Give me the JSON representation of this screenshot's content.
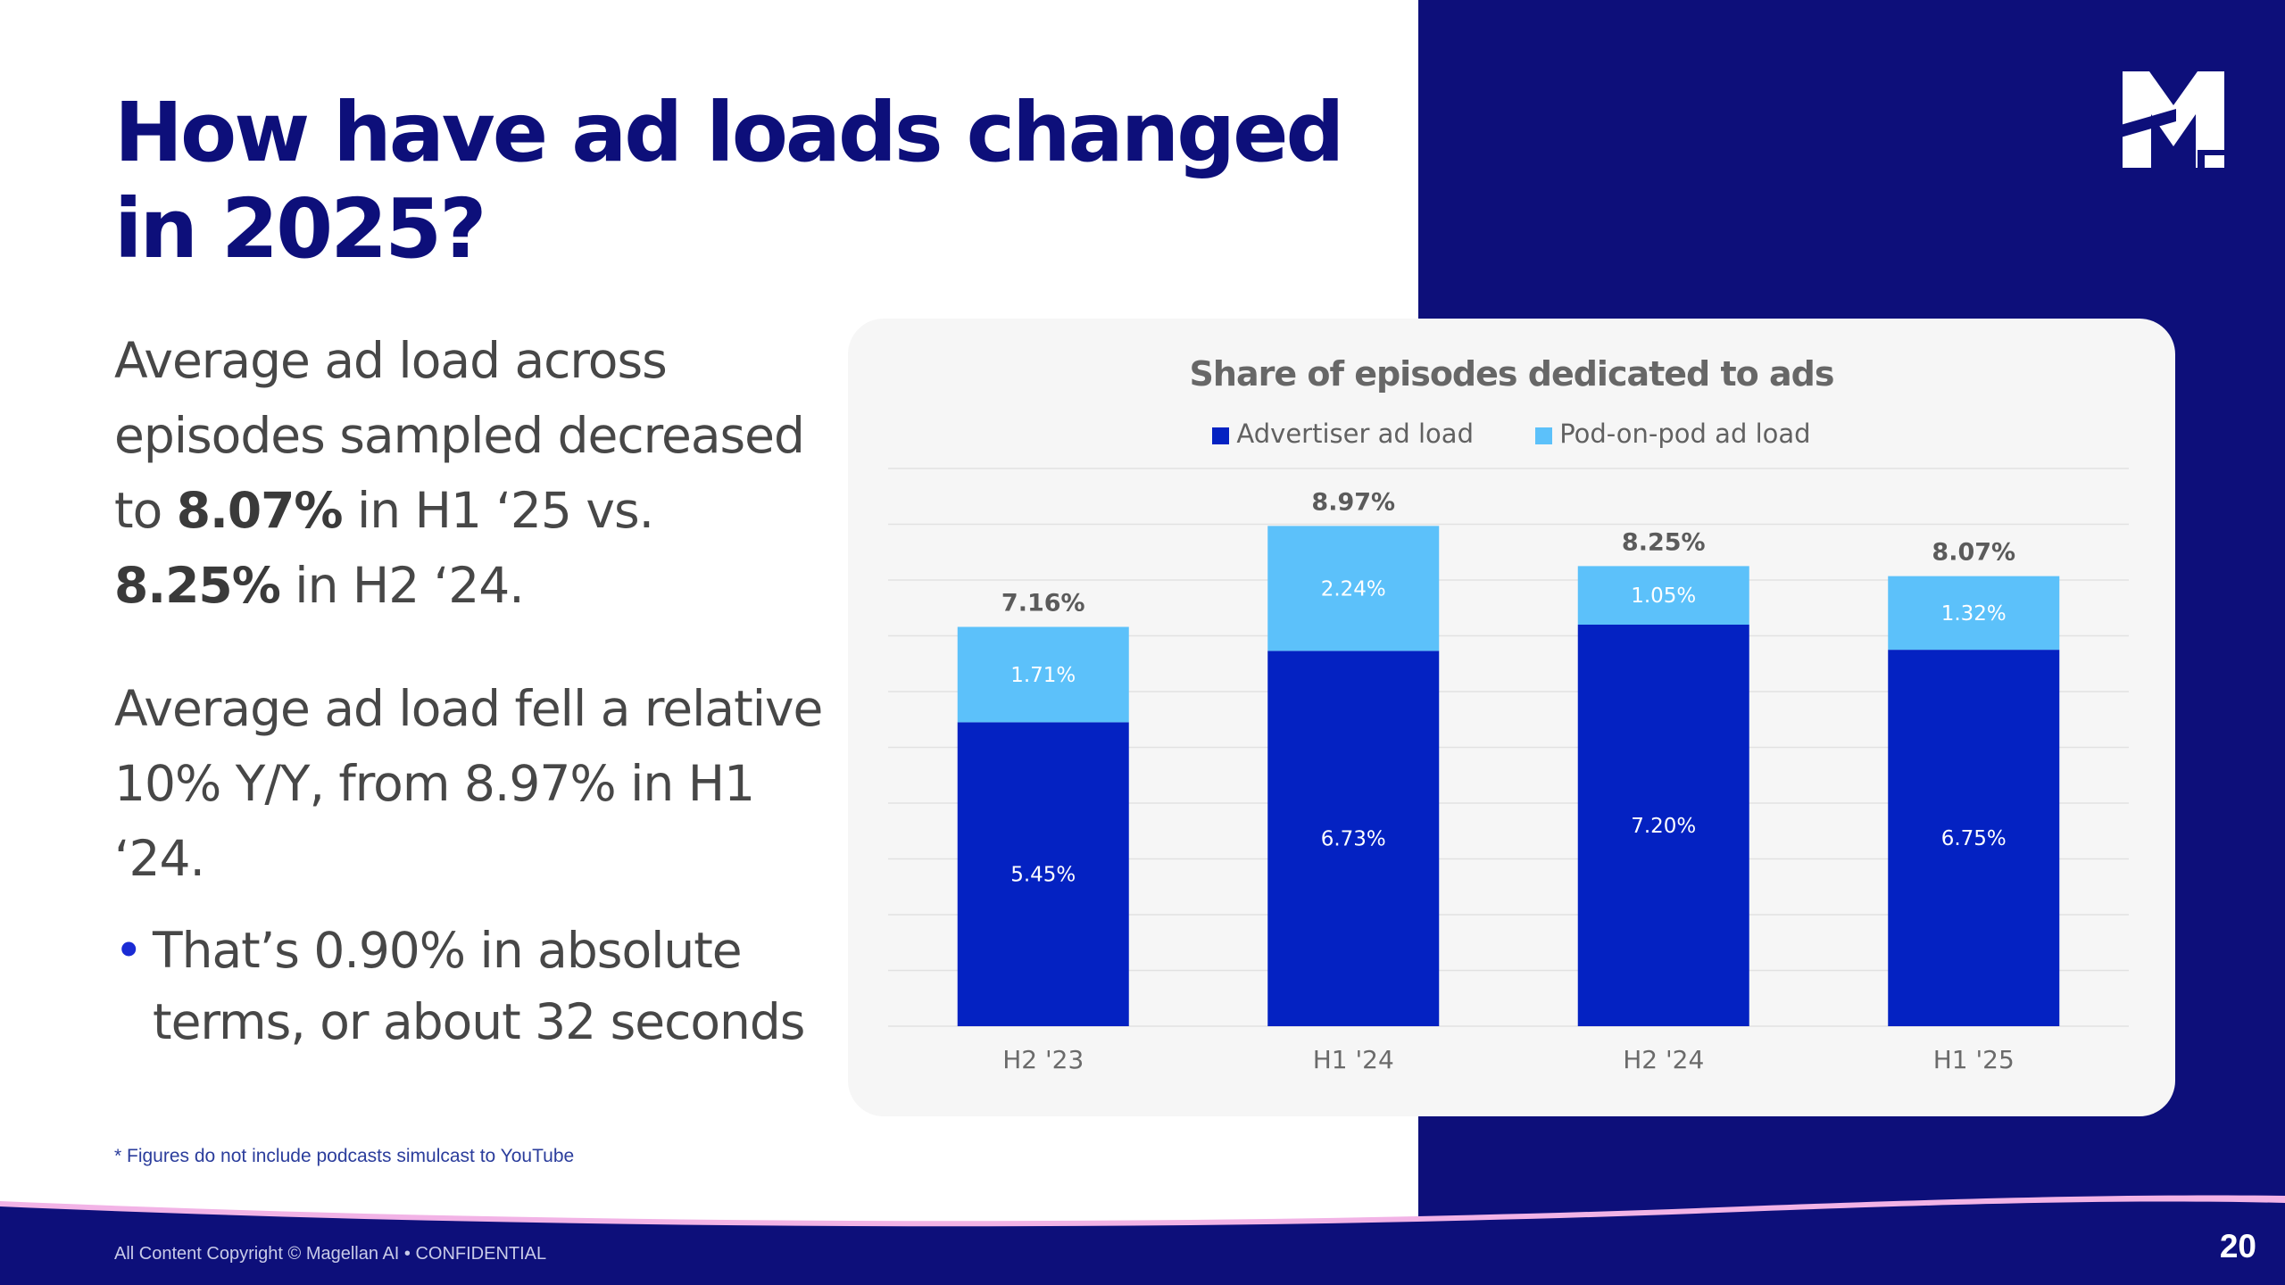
{
  "slide": {
    "title": "How have ad loads changed in 2025?",
    "para1": {
      "text_a": "Average ad load across episodes sampled decreased to ",
      "bold_a": "8.07%",
      "text_b": " in H1 ‘25 vs. ",
      "bold_b": "8.25%",
      "text_c": " in H2 ‘24."
    },
    "para2": "Average ad load fell a relative 10% Y/Y, from 8.97% in H1 ‘24.",
    "bullet_symbol": "•",
    "bullet": "That’s 0.90% in absolute terms, or about 32 seconds",
    "footnote": "* Figures do not include podcasts simulcast to YouTube",
    "copyright": "All Content Copyright © Magellan AI • CONFIDENTIAL",
    "page_number": "20",
    "logo_icon": "magellan-m-logo"
  },
  "colors": {
    "navy": "#0d0f7a",
    "advertiser": "#0422c2",
    "pod_on_pod": "#5cc1fa",
    "card_bg": "#f6f6f6"
  },
  "chart_data": {
    "type": "bar",
    "stacked": true,
    "title": "Share of episodes dedicated to ads",
    "categories": [
      "H2 '23",
      "H1 '24",
      "H2 '24",
      "H1 '25"
    ],
    "series": [
      {
        "name": "Advertiser ad load",
        "color": "#0422c2",
        "values": [
          5.45,
          6.73,
          7.2,
          6.75
        ],
        "labels": [
          "5.45%",
          "6.73%",
          "7.20%",
          "6.75%"
        ]
      },
      {
        "name": "Pod-on-pod ad load",
        "color": "#5cc1fa",
        "values": [
          1.71,
          2.24,
          1.05,
          1.32
        ],
        "labels": [
          "1.71%",
          "2.24%",
          "1.05%",
          "1.32%"
        ]
      }
    ],
    "totals": [
      7.16,
      8.97,
      8.25,
      8.07
    ],
    "total_labels": [
      "7.16%",
      "8.97%",
      "8.25%",
      "8.07%"
    ],
    "ylim": [
      0,
      10
    ],
    "grid": true,
    "legend_position": "top-center"
  }
}
